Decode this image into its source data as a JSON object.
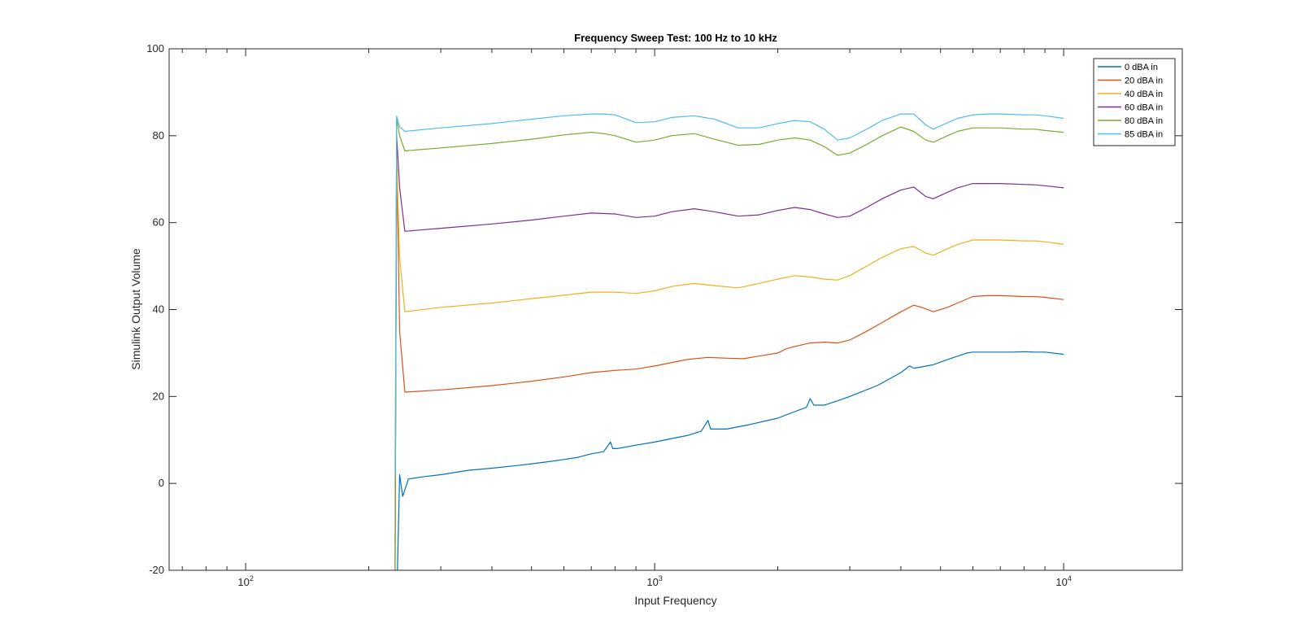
{
  "chart_data": {
    "type": "line",
    "title": "Frequency Sweep Test: 100 Hz to 10 kHz",
    "xlabel": "Input Frequency",
    "ylabel": "Simulink Output Volume",
    "xscale": "log",
    "xlim": [
      65,
      19500
    ],
    "ylim": [
      -20,
      100
    ],
    "xticks": [
      {
        "value": 100,
        "base": "10",
        "exp": "2"
      },
      {
        "value": 1000,
        "base": "10",
        "exp": "3"
      },
      {
        "value": 10000,
        "base": "10",
        "exp": "4"
      }
    ],
    "yticks": [
      -20,
      0,
      20,
      40,
      60,
      80,
      100
    ],
    "grid": false,
    "legend_position": "top-right",
    "series": [
      {
        "name": "0 dBA in",
        "color": "#0072BD",
        "x": [
          235,
          238,
          242,
          250,
          270,
          300,
          350,
          400,
          450,
          500,
          550,
          600,
          650,
          700,
          750,
          780,
          790,
          810,
          900,
          1000,
          1100,
          1200,
          1300,
          1350,
          1370,
          1400,
          1500,
          1700,
          2000,
          2200,
          2350,
          2400,
          2450,
          2600,
          2800,
          3000,
          3500,
          4000,
          4200,
          4300,
          4500,
          4800,
          5200,
          5800,
          6000,
          6500,
          7000,
          7500,
          8000,
          8500,
          9000,
          10000
        ],
        "y": [
          -20,
          2,
          -3,
          1,
          1.5,
          2,
          3,
          3.5,
          4,
          4.5,
          5,
          5.5,
          6,
          6.8,
          7.3,
          9.5,
          8,
          8,
          8.8,
          9.5,
          10.3,
          11,
          12,
          14.5,
          12.5,
          12.5,
          12.5,
          13.5,
          15,
          16.5,
          17.5,
          19.5,
          18,
          18,
          19,
          20,
          22.5,
          25.5,
          27,
          26.5,
          26.8,
          27.3,
          28.5,
          30,
          30.2,
          30.2,
          30.2,
          30.2,
          30.3,
          30.2,
          30.2,
          29.7
        ]
      },
      {
        "name": "20 dBA in",
        "color": "#D95319",
        "x": [
          232,
          234,
          238,
          245,
          300,
          400,
          500,
          600,
          700,
          800,
          900,
          1000,
          1200,
          1350,
          1500,
          1650,
          1800,
          2000,
          2100,
          2200,
          2400,
          2600,
          2800,
          3000,
          3300,
          3600,
          4000,
          4300,
          4500,
          4800,
          5200,
          5500,
          6000,
          6500,
          7000,
          8000,
          8500,
          9000,
          10000
        ],
        "y": [
          -14,
          75,
          35,
          21,
          21.5,
          22.5,
          23.5,
          24.5,
          25.5,
          26,
          26.3,
          27,
          28.5,
          29,
          28.8,
          28.7,
          29.3,
          30,
          31,
          31.5,
          32.3,
          32.5,
          32.3,
          33,
          35,
          37,
          39.5,
          41,
          40.5,
          39.5,
          40.5,
          41.5,
          43,
          43.2,
          43.2,
          43,
          43,
          42.8,
          42.3
        ]
      },
      {
        "name": "40 dBA in",
        "color": "#EDB120",
        "x": [
          232,
          234,
          238,
          245,
          300,
          400,
          500,
          600,
          700,
          800,
          900,
          1000,
          1100,
          1250,
          1400,
          1600,
          1800,
          2000,
          2200,
          2400,
          2600,
          2800,
          3000,
          3300,
          3600,
          4000,
          4300,
          4600,
          4800,
          5200,
          5500,
          6000,
          6500,
          7000,
          8000,
          8500,
          9000,
          10000
        ],
        "y": [
          -20,
          75,
          52,
          39.5,
          40.5,
          41.5,
          42.5,
          43.3,
          44,
          44,
          43.7,
          44.3,
          45.3,
          46,
          45.5,
          45,
          46,
          47,
          47.8,
          47.5,
          47,
          46.8,
          47.8,
          50,
          52,
          54,
          54.5,
          53,
          52.5,
          54,
          55,
          56,
          56,
          56,
          55.8,
          55.8,
          55.6,
          55
        ]
      },
      {
        "name": "60 dBA in",
        "color": "#7E2F8E",
        "x": [
          232,
          234,
          238,
          245,
          300,
          400,
          500,
          600,
          700,
          800,
          900,
          1000,
          1100,
          1250,
          1400,
          1600,
          1800,
          2000,
          2200,
          2400,
          2600,
          2800,
          3000,
          3300,
          3600,
          4000,
          4300,
          4600,
          4800,
          5200,
          5500,
          6000,
          6500,
          7000,
          8000,
          8500,
          9000,
          10000
        ],
        "y": [
          -20,
          80,
          68,
          58,
          58.7,
          59.7,
          60.6,
          61.5,
          62.2,
          62,
          61.2,
          61.5,
          62.5,
          63.2,
          62.5,
          61.5,
          61.8,
          62.8,
          63.5,
          63,
          62,
          61.2,
          61.5,
          63.5,
          65.5,
          67.5,
          68.2,
          66,
          65.5,
          67,
          68,
          69,
          69,
          69,
          68.8,
          68.7,
          68.5,
          68
        ]
      },
      {
        "name": "80 dBA in",
        "color": "#77AC30",
        "x": [
          232,
          234,
          238,
          245,
          300,
          400,
          500,
          600,
          700,
          750,
          800,
          900,
          1000,
          1100,
          1250,
          1400,
          1600,
          1800,
          2000,
          2200,
          2400,
          2600,
          2800,
          3000,
          3300,
          3600,
          4000,
          4300,
          4600,
          4800,
          5200,
          5500,
          6000,
          6500,
          7000,
          8000,
          8500,
          9000,
          10000
        ],
        "y": [
          -20,
          84,
          80,
          76.5,
          77.2,
          78.2,
          79.2,
          80.2,
          80.8,
          80.5,
          80,
          78.5,
          79,
          80,
          80.5,
          79.2,
          77.8,
          78,
          79,
          79.5,
          79,
          77.5,
          75.5,
          76,
          78,
          80,
          82,
          81,
          79,
          78.5,
          80,
          81,
          81.8,
          81.8,
          81.8,
          81.5,
          81.5,
          81.2,
          80.8
        ]
      },
      {
        "name": "85 dBA in",
        "color": "#4DBEEE",
        "x": [
          232,
          234,
          238,
          245,
          300,
          400,
          500,
          600,
          700,
          750,
          800,
          900,
          1000,
          1100,
          1250,
          1400,
          1600,
          1800,
          2000,
          2200,
          2400,
          2600,
          2800,
          3000,
          3300,
          3600,
          4000,
          4300,
          4600,
          4800,
          5200,
          5500,
          6000,
          6500,
          7000,
          8000,
          8500,
          9000,
          10000
        ],
        "y": [
          2,
          84.5,
          82,
          81,
          81.8,
          82.8,
          83.8,
          84.6,
          85,
          85,
          84.8,
          83,
          83.2,
          84.2,
          84.6,
          83.8,
          81.8,
          81.8,
          82.8,
          83.5,
          83.2,
          81.5,
          79,
          79.5,
          81.5,
          83.5,
          85,
          85,
          82.5,
          81.5,
          83,
          84,
          84.8,
          85,
          85,
          84.8,
          84.8,
          84.6,
          84
        ]
      }
    ]
  }
}
